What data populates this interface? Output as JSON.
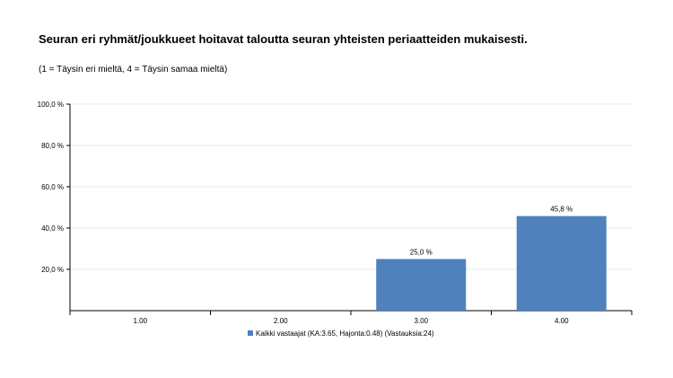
{
  "title": "Seuran eri ryhmät/joukkueet hoitavat taloutta seuran yhteisten periaatteiden mukaisesti.",
  "subtitle": "(1 = Täysin eri mieltä, 4 = Täysin samaa mieltä)",
  "colors": {
    "bar": "#4f81bd",
    "axis": "#000000",
    "grid": "#e8e8e8"
  },
  "chart_data": {
    "type": "bar",
    "categories": [
      "1.00",
      "2.00",
      "3.00",
      "4.00"
    ],
    "series": [
      {
        "name": "Kaikki vastaajat (KA:3.65, Hajonta:0.48) (Vastauksia:24)",
        "values": [
          0,
          0,
          25.0,
          45.8
        ]
      }
    ],
    "data_labels": [
      "",
      "",
      "25,0 %",
      "45,8 %"
    ],
    "y_ticks": [
      "20,0 %",
      "40,0 %",
      "60,0 %",
      "80,0 %",
      "100,0 %"
    ],
    "y_tick_values": [
      20,
      40,
      60,
      80,
      100
    ],
    "ylim": [
      0,
      100
    ],
    "grid": true,
    "legend_position": "bottom"
  }
}
